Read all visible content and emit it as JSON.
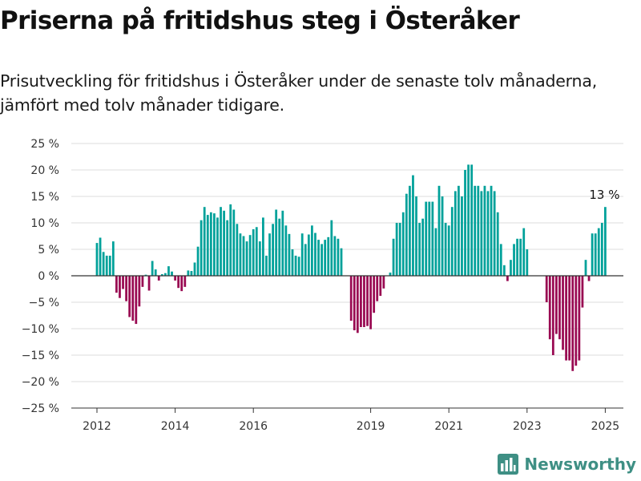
{
  "header": {
    "title": "Priserna på fritidshus steg i Österåker",
    "subtitle": "Prisutveckling för fritidshus i Österåker under de senaste tolv månaderna, jämfört med tolv månader tidigare."
  },
  "brand": {
    "name": "Newsworthy",
    "icon": "newsworthy-logo-icon",
    "color": "#3e8f84"
  },
  "colors": {
    "positive": "#00a19a",
    "negative": "#990a52"
  },
  "chart_data": {
    "type": "bar",
    "y_unit": "%",
    "ylim": [
      -25,
      25
    ],
    "y_ticks": [
      25,
      20,
      15,
      10,
      5,
      0,
      -5,
      -10,
      -15,
      -20,
      -25
    ],
    "y_tick_labels": [
      "25 %",
      "20 %",
      "15 %",
      "10 %",
      "5 %",
      "0 %",
      "−5 %",
      "−10 %",
      "−15 %",
      "−20 %",
      "−25 %"
    ],
    "x_ticks": [
      2012,
      2014,
      2016,
      2019,
      2021,
      2023,
      2025
    ],
    "x_tick_labels": [
      "2012",
      "2014",
      "2016",
      "2019",
      "2021",
      "2023",
      "2025"
    ],
    "grid": true,
    "last_value_label": "13 %",
    "series": [
      {
        "start": "2012-01",
        "values": [
          6.2,
          7.2,
          4.5,
          3.8,
          3.8,
          6.5,
          -3.2,
          -4.2,
          -2.5,
          -4.8,
          -7.8,
          -8.5,
          -9.1,
          -5.8,
          -2.1,
          0.2,
          -2.8,
          2.8,
          1.2,
          -0.9,
          0.3,
          0.5,
          1.8,
          0.8,
          -0.9,
          -2.3,
          -2.9,
          -2.1,
          1.0,
          0.9
        ]
      },
      {
        "start": "2014-07",
        "values": [
          2.5,
          5.5,
          10.5,
          13.0,
          11.5,
          12.0,
          11.8,
          11.0,
          13.0,
          12.3,
          10.5,
          13.5,
          12.5,
          9.8,
          8.0,
          7.5,
          6.5,
          7.7,
          8.8,
          9.2,
          6.5,
          11.0,
          3.8,
          8.0,
          9.8,
          12.5,
          10.8,
          12.3,
          9.5,
          7.9,
          5.0,
          3.8,
          3.6,
          8.0,
          6.0,
          7.8,
          9.5,
          8.1,
          6.8,
          6.0,
          6.8,
          7.3,
          10.5,
          7.5,
          7.0,
          5.2
        ]
      },
      {
        "start": "2018-07",
        "values": [
          -8.5,
          -10.3,
          -10.8,
          -9.7,
          -9.7,
          -9.5,
          -10.1,
          -7.0,
          -4.8,
          -3.8,
          -2.4
        ]
      },
      {
        "start": "2019-07",
        "values": [
          0.6,
          7.0,
          10.0,
          10.0,
          12.0,
          15.5,
          17.0,
          19.0,
          15.0,
          10.0,
          10.8,
          14.0,
          14.0,
          14.0,
          9.0,
          17.0,
          15.0,
          10.0,
          9.5,
          13.0,
          16.0,
          17.0,
          15.0,
          20.0,
          21.0,
          21.0,
          17.0,
          17.0,
          16.0,
          17.0,
          16.0,
          17.0,
          16.0,
          12.0,
          6.0,
          2.0,
          -1.0,
          3.0,
          6.0,
          7.0,
          7.0,
          9.0,
          5.0
        ]
      },
      {
        "start": "2023-07",
        "values": [
          -5.0,
          -12.0,
          -15.0,
          -11.0,
          -12.0,
          -14.0,
          -16.0,
          -16.0,
          -18.0,
          -17.0,
          -16.0,
          -6.0
        ]
      },
      {
        "start": "2024-07",
        "values": [
          3.0,
          -1.0,
          8.0,
          8.0,
          9.0,
          10.0,
          13.0
        ]
      }
    ]
  }
}
